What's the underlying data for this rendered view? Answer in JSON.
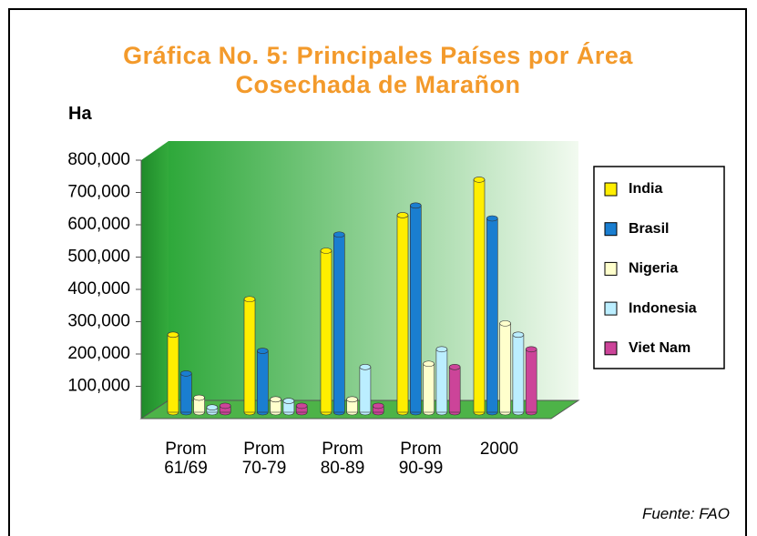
{
  "chart_data": {
    "type": "bar3d",
    "title": "Gráfica No. 5:  Principales Países por Área Cosechada de Marañon",
    "y_axis_label": "Ha",
    "source": "Fuente: FAO",
    "categories": [
      "Prom 61/69",
      "Prom 70-79",
      "Prom 80-89",
      "Prom 90-99",
      "2000"
    ],
    "series": [
      {
        "name": "India",
        "color": "#ffee00",
        "values": [
          240000,
          350000,
          500000,
          610000,
          720000
        ]
      },
      {
        "name": "Brasil",
        "color": "#1a7ed0",
        "values": [
          120000,
          190000,
          550000,
          640000,
          600000
        ]
      },
      {
        "name": "Nigeria",
        "color": "#ffffcc",
        "values": [
          45000,
          40000,
          40000,
          150000,
          275000
        ]
      },
      {
        "name": "Indonesia",
        "color": "#bbeeff",
        "values": [
          15000,
          35000,
          140000,
          195000,
          240000
        ]
      },
      {
        "name": "Viet Nam",
        "color": "#cc4499",
        "values": [
          20000,
          20000,
          20000,
          140000,
          195000
        ]
      }
    ],
    "ylim": [
      0,
      800000
    ],
    "yticks": [
      {
        "value": 100000,
        "label": "100,000"
      },
      {
        "value": 200000,
        "label": "200,000"
      },
      {
        "value": 300000,
        "label": "300,000"
      },
      {
        "value": 400000,
        "label": "400,000"
      },
      {
        "value": 500000,
        "label": "500,000"
      },
      {
        "value": 600000,
        "label": "600,000"
      },
      {
        "value": 700000,
        "label": "700,000"
      },
      {
        "value": 800000,
        "label": "800,000"
      }
    ],
    "legend": "right"
  }
}
